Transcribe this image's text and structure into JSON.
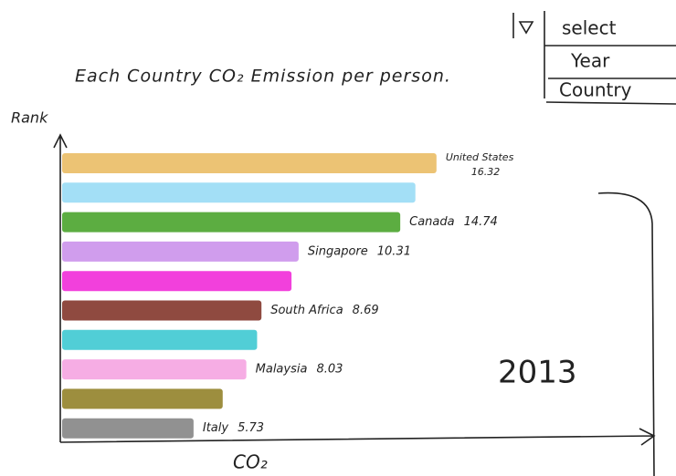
{
  "chart_data": {
    "type": "bar",
    "orientation": "horizontal",
    "title": "Each Country CO₂ Emission per person.",
    "y_label": "Rank",
    "x_label": "CO₂",
    "annotation": "2013",
    "categories": [
      "United States",
      null,
      "Canada",
      "Singapore",
      null,
      "South Africa",
      null,
      "Malaysia",
      null,
      "Italy"
    ],
    "values": [
      16.32,
      15.4,
      14.74,
      10.31,
      10.0,
      8.69,
      8.5,
      8.03,
      7.0,
      5.73
    ],
    "colors": [
      "#e9b85c",
      "#93d9f4",
      "#3f9f20",
      "#c88cea",
      "#f01ed6",
      "#7b2a1e",
      "#33c6cf",
      "#f49fdf",
      "#8c7a1c",
      "#7e7e7e"
    ],
    "xlim": [
      0,
      18
    ],
    "annotation_color": "#e07a10"
  },
  "controls": {
    "select": "select",
    "options": [
      "Year",
      "Country"
    ]
  }
}
